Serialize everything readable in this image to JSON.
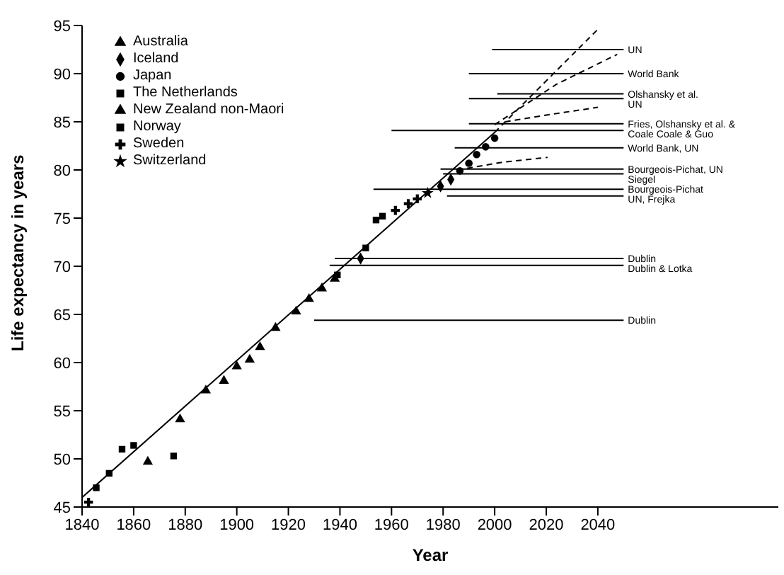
{
  "chart_data": {
    "type": "scatter",
    "xlabel": "Year",
    "ylabel": "Life expectancy in years",
    "xlim": [
      1840,
      2110
    ],
    "xticks": [
      1840,
      1860,
      1880,
      1900,
      1920,
      1940,
      1960,
      1980,
      2000,
      2020,
      2040
    ],
    "ylim": [
      45,
      95
    ],
    "yticks": [
      45,
      50,
      55,
      60,
      65,
      70,
      75,
      80,
      85,
      90,
      95
    ],
    "legend": "top left",
    "series": [
      {
        "name": "Australia",
        "marker": "triangle",
        "color": "#000000",
        "x": [
          1865.5
        ],
        "values": [
          49.7
        ]
      },
      {
        "name": "Iceland",
        "marker": "diamond",
        "color": "#000000",
        "x": [
          1948,
          1979,
          1983
        ],
        "values": [
          70.8,
          78.3,
          79.0
        ]
      },
      {
        "name": "Japan",
        "marker": "circle",
        "color": "#000000",
        "x": [
          1986.5,
          1990,
          1993,
          1996.5,
          2000
        ],
        "values": [
          79.9,
          80.7,
          81.6,
          82.4,
          83.3
        ]
      },
      {
        "name": "The Netherlands",
        "marker": "square",
        "color": "#000000",
        "x": [
          1954,
          1956.5
        ],
        "values": [
          74.8,
          75.2
        ]
      },
      {
        "name": "New Zealand non-Maori",
        "marker": "triangle",
        "color": "#000000",
        "x": [
          1878,
          1888,
          1895,
          1900,
          1905,
          1909,
          1915,
          1923,
          1928,
          1933,
          1938
        ],
        "values": [
          54.1,
          57.1,
          58.1,
          59.6,
          60.3,
          61.6,
          63.6,
          65.3,
          66.6,
          67.7,
          68.7
        ]
      },
      {
        "name": "Norway",
        "marker": "square",
        "color": "#000000",
        "x": [
          1845.5,
          1850.5,
          1855.5,
          1860,
          1875.5,
          1939,
          1950
        ],
        "values": [
          47.0,
          48.5,
          51.0,
          51.4,
          50.3,
          69.1,
          71.9
        ]
      },
      {
        "name": "Sweden",
        "marker": "cross",
        "color": "#000000",
        "x": [
          1842.5,
          1961.5,
          1966.5,
          1970
        ],
        "values": [
          45.5,
          75.8,
          76.5,
          77.0
        ]
      },
      {
        "name": "Switzerland",
        "marker": "star",
        "color": "#000000",
        "x": [
          1974
        ],
        "values": [
          77.6
        ]
      },
      {
        "type": "line",
        "line_style": "solid",
        "color": "#000000",
        "x": [
          1840,
          2000
        ],
        "values": [
          46.0,
          83.9
        ]
      },
      {
        "type": "line",
        "line_style": "dashed",
        "color": "#000000",
        "x": [
          2000,
          2040
        ],
        "values": [
          83.9,
          94.6
        ]
      },
      {
        "type": "line",
        "line_style": "dashed",
        "color": "#000000",
        "x": [
          2000,
          2024,
          2047.5
        ],
        "values": [
          84.7,
          88.9,
          92.0
        ]
      },
      {
        "type": "line",
        "line_style": "dashed",
        "color": "#000000",
        "x": [
          2004,
          2022.5,
          2040
        ],
        "values": [
          85.0,
          85.8,
          86.5
        ]
      },
      {
        "type": "line",
        "line_style": "dashed",
        "color": "#000000",
        "x": [
          1985.5,
          2003,
          2020.5
        ],
        "values": [
          80.0,
          80.8,
          81.3
        ]
      },
      {
        "name": "UN",
        "type": "line",
        "line_style": "solid",
        "color": "#000000",
        "x": [
          1999,
          2050
        ],
        "values": [
          92.5,
          92.5
        ]
      },
      {
        "name": "World Bank",
        "type": "line",
        "line_style": "solid",
        "color": "#000000",
        "x": [
          1990,
          2050
        ],
        "values": [
          90.0,
          90.0
        ]
      },
      {
        "name": "Olshansky et al.",
        "type": "line",
        "line_style": "solid",
        "color": "#000000",
        "x": [
          2001,
          2050
        ],
        "values": [
          87.9,
          87.9
        ]
      },
      {
        "name": "UN",
        "type": "line",
        "line_style": "solid",
        "color": "#000000",
        "x": [
          1990,
          2050
        ],
        "values": [
          87.4,
          87.4
        ]
      },
      {
        "name": "Fries, Olshansky et al. &",
        "type": "line",
        "line_style": "solid",
        "color": "#000000",
        "x": [
          1990,
          2050
        ],
        "values": [
          84.8,
          84.8
        ]
      },
      {
        "name": "Coale   Coale & Guo",
        "type": "line",
        "line_style": "solid",
        "color": "#000000",
        "x": [
          1960,
          2050
        ],
        "values": [
          84.1,
          84.1
        ]
      },
      {
        "name": "World Bank, UN",
        "type": "line",
        "line_style": "solid",
        "color": "#000000",
        "x": [
          1984.5,
          2050
        ],
        "values": [
          82.3,
          82.3
        ]
      },
      {
        "name": "Bourgeois-Pichat, UN",
        "type": "line",
        "line_style": "solid",
        "color": "#000000",
        "x": [
          1979,
          2050
        ],
        "values": [
          80.1,
          80.1
        ]
      },
      {
        "name": "Siegel",
        "type": "line",
        "line_style": "solid",
        "color": "#000000",
        "x": [
          1980,
          2050
        ],
        "values": [
          79.6,
          79.6
        ]
      },
      {
        "name": "Bourgeois-Pichat",
        "type": "line",
        "line_style": "solid",
        "color": "#000000",
        "x": [
          1953,
          2050
        ],
        "values": [
          78.0,
          78.0
        ]
      },
      {
        "name": "UN, Frejka",
        "type": "line",
        "line_style": "solid",
        "color": "#000000",
        "x": [
          1981.5,
          2050
        ],
        "values": [
          77.3,
          77.3
        ]
      },
      {
        "name": "Dublin",
        "type": "line",
        "line_style": "solid",
        "color": "#000000",
        "x": [
          1938,
          2050
        ],
        "values": [
          70.8,
          70.8
        ]
      },
      {
        "name": "Dublin & Lotka",
        "type": "line",
        "line_style": "solid",
        "color": "#000000",
        "x": [
          1936,
          2050
        ],
        "values": [
          70.1,
          70.1
        ]
      },
      {
        "name": "Dublin",
        "type": "line",
        "line_style": "solid",
        "color": "#000000",
        "x": [
          1930,
          2050
        ],
        "values": [
          64.4,
          64.4
        ]
      }
    ]
  }
}
